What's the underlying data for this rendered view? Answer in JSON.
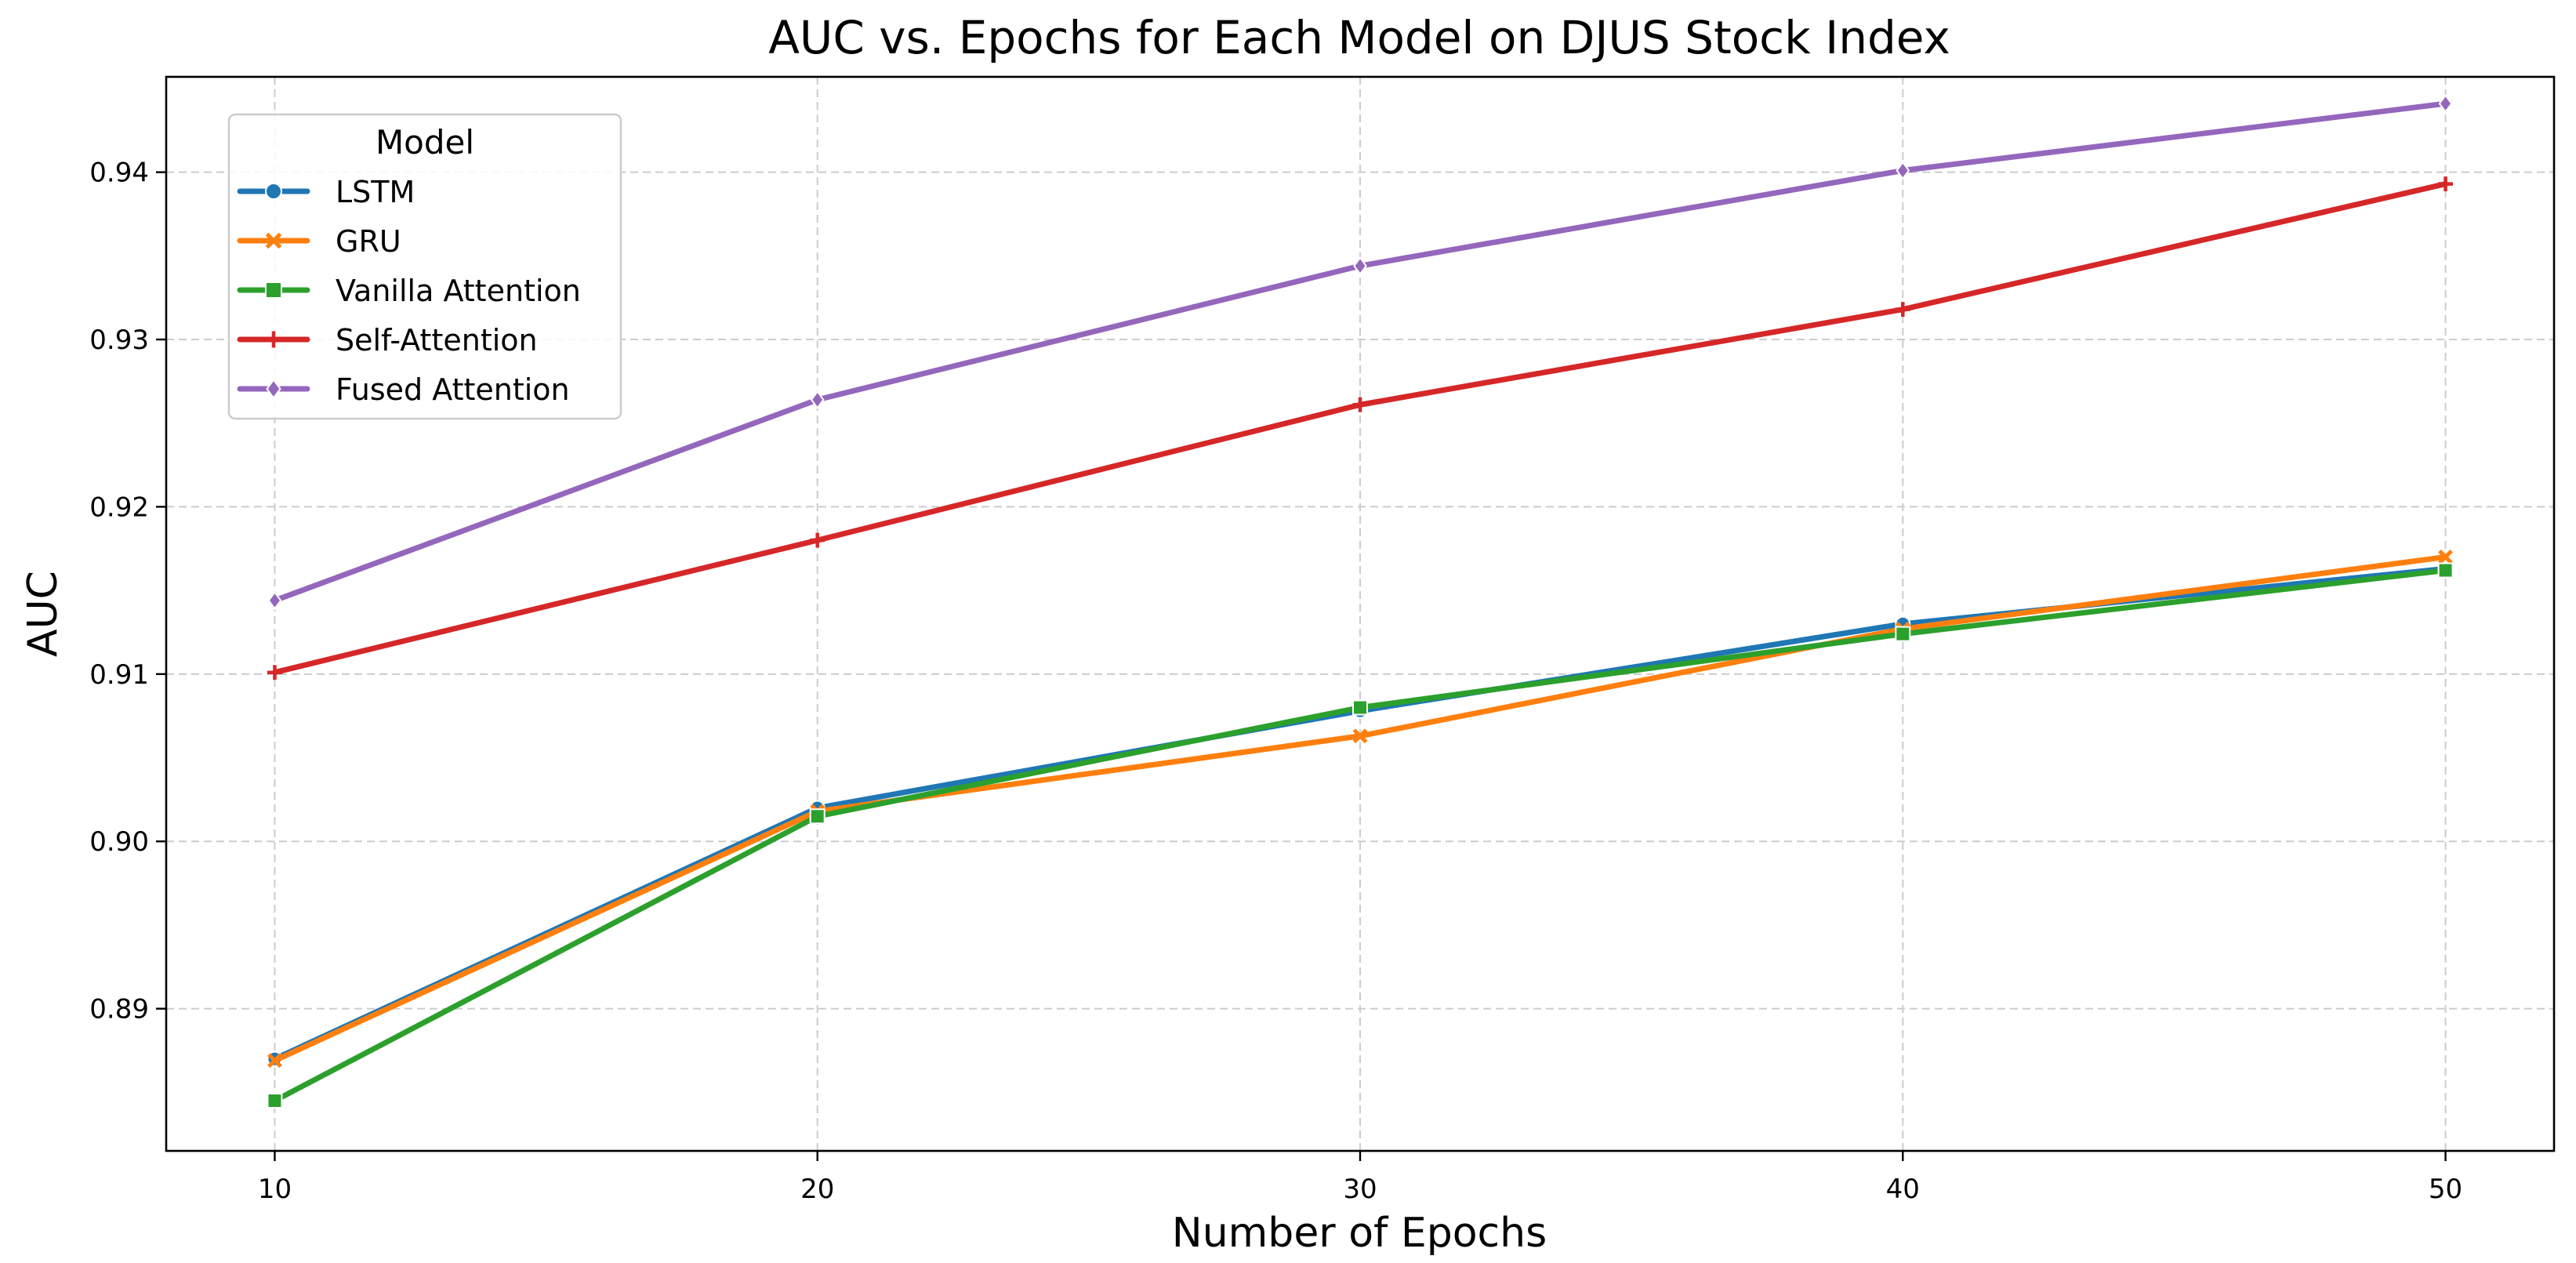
{
  "chart_data": {
    "type": "line",
    "title": "AUC vs. Epochs for Each Model on DJUS Stock Index",
    "xlabel": "Number of Epochs",
    "ylabel": "AUC",
    "x": [
      10,
      20,
      30,
      40,
      50
    ],
    "x_ticks": [
      10,
      20,
      30,
      40,
      50
    ],
    "y_ticks": [
      0.89,
      0.9,
      0.91,
      0.92,
      0.93,
      0.94
    ],
    "y_tick_labels": [
      "0.89",
      "0.90",
      "0.91",
      "0.92",
      "0.93",
      "0.94"
    ],
    "xlim": [
      8,
      52
    ],
    "ylim": [
      0.8815,
      0.9457
    ],
    "grid": true,
    "legend": {
      "title": "Model",
      "placement": "upper-left"
    },
    "series": [
      {
        "name": "LSTM",
        "color": "#1f77b4",
        "marker": "circle",
        "values": [
          0.887,
          0.902,
          0.9078,
          0.913,
          0.9163
        ]
      },
      {
        "name": "GRU",
        "color": "#ff7f0e",
        "marker": "x",
        "values": [
          0.8869,
          0.9018,
          0.9063,
          0.9127,
          0.917
        ]
      },
      {
        "name": "Vanilla Attention",
        "color": "#2ca02c",
        "marker": "square",
        "values": [
          0.8845,
          0.9015,
          0.908,
          0.9124,
          0.9162
        ]
      },
      {
        "name": "Self-Attention",
        "color": "#d62728",
        "marker": "plus",
        "values": [
          0.9101,
          0.918,
          0.9261,
          0.9318,
          0.9393
        ]
      },
      {
        "name": "Fused Attention",
        "color": "#9467bd",
        "marker": "diamond",
        "values": [
          0.9144,
          0.9264,
          0.9344,
          0.9401,
          0.9441
        ]
      }
    ]
  }
}
